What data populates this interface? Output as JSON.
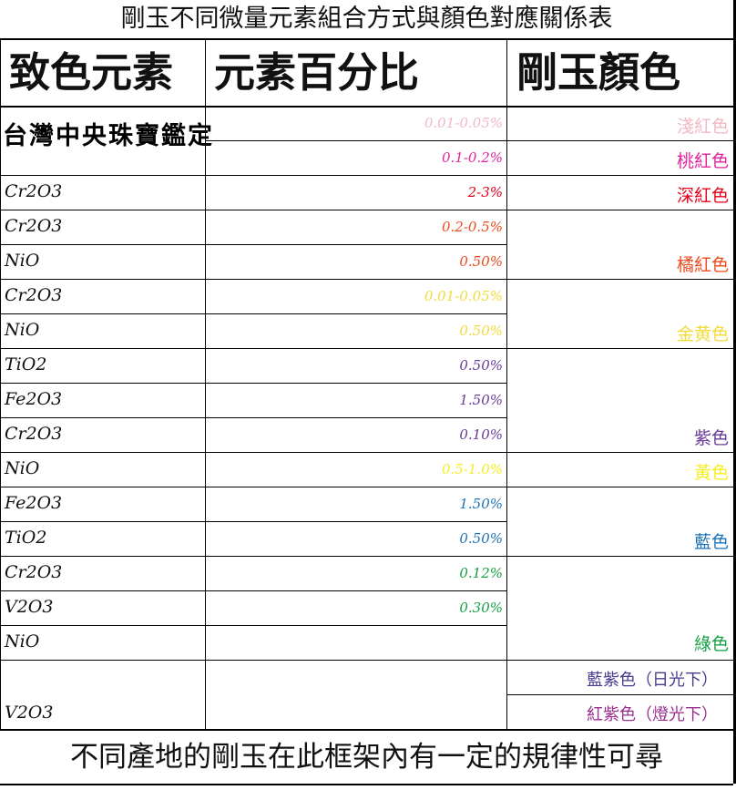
{
  "title": "剛玉不同微量元素組合方式與顏色對應關係表",
  "headers": {
    "element": "致色元素",
    "percent": "元素百分比",
    "color": "剛玉顏色"
  },
  "stamp_text": "台灣中央珠寶鑑定",
  "rows": [
    {
      "element": "",
      "percent": "0.01-0.05%",
      "percent_color": "#f1b9c5"
    },
    {
      "element": "",
      "percent": "0.1-0.2%",
      "percent_color": "#e0249e"
    },
    {
      "element": "Cr2O3",
      "percent": "2-3%",
      "percent_color": "#e3001b"
    },
    {
      "element": "Cr2O3",
      "percent": "0.2-0.5%",
      "percent_color": "#ee4a1e"
    },
    {
      "element": "NiO",
      "percent": "0.50%",
      "percent_color": "#ee4a1e"
    },
    {
      "element": "Cr2O3",
      "percent": "0.01-0.05%",
      "percent_color": "#f2dc3c"
    },
    {
      "element": "NiO",
      "percent": "0.50%",
      "percent_color": "#f2dc3c"
    },
    {
      "element": "TiO2",
      "percent": "0.50%",
      "percent_color": "#6a3a9b"
    },
    {
      "element": "Fe2O3",
      "percent": "1.50%",
      "percent_color": "#6a3a9b"
    },
    {
      "element": "Cr2O3",
      "percent": "0.10%",
      "percent_color": "#6a3a9b"
    },
    {
      "element": "NiO",
      "percent": "0.5-1.0%",
      "percent_color": "#f6ee22"
    },
    {
      "element": "Fe2O3",
      "percent": "1.50%",
      "percent_color": "#1e73b8"
    },
    {
      "element": "TiO2",
      "percent": "0.50%",
      "percent_color": "#1e73b8"
    },
    {
      "element": "Cr2O3",
      "percent": "0.12%",
      "percent_color": "#17a046"
    },
    {
      "element": "V2O3",
      "percent": "0.30%",
      "percent_color": "#17a046"
    },
    {
      "element": "NiO",
      "percent": "",
      "percent_color": "#17a046"
    },
    {
      "element": "V2O3",
      "percent": "",
      "percent_color": "#000000"
    }
  ],
  "colors": [
    {
      "label": "淺紅色",
      "color": "#f1b9c5"
    },
    {
      "label": "桃紅色",
      "color": "#e0249e"
    },
    {
      "label": "深紅色",
      "color": "#e3001b"
    },
    {
      "label": "橘紅色",
      "color": "#ee4a1e"
    },
    {
      "label": "金黄色",
      "color": "#f2dc3c"
    },
    {
      "label": "紫色",
      "color": "#6a3a9b"
    },
    {
      "label": "黃色",
      "color": "#f6ee22"
    },
    {
      "label": "藍色",
      "color": "#1e73b8"
    },
    {
      "label": "綠色",
      "color": "#17a046"
    },
    {
      "label": "藍紫色（日光下）",
      "color": "#4b3b8f"
    },
    {
      "label": "紅紫色（燈光下）",
      "color": "#9b2f8f"
    }
  ],
  "footer": "不同產地的剛玉在此框架內有一定的規律性可尋"
}
